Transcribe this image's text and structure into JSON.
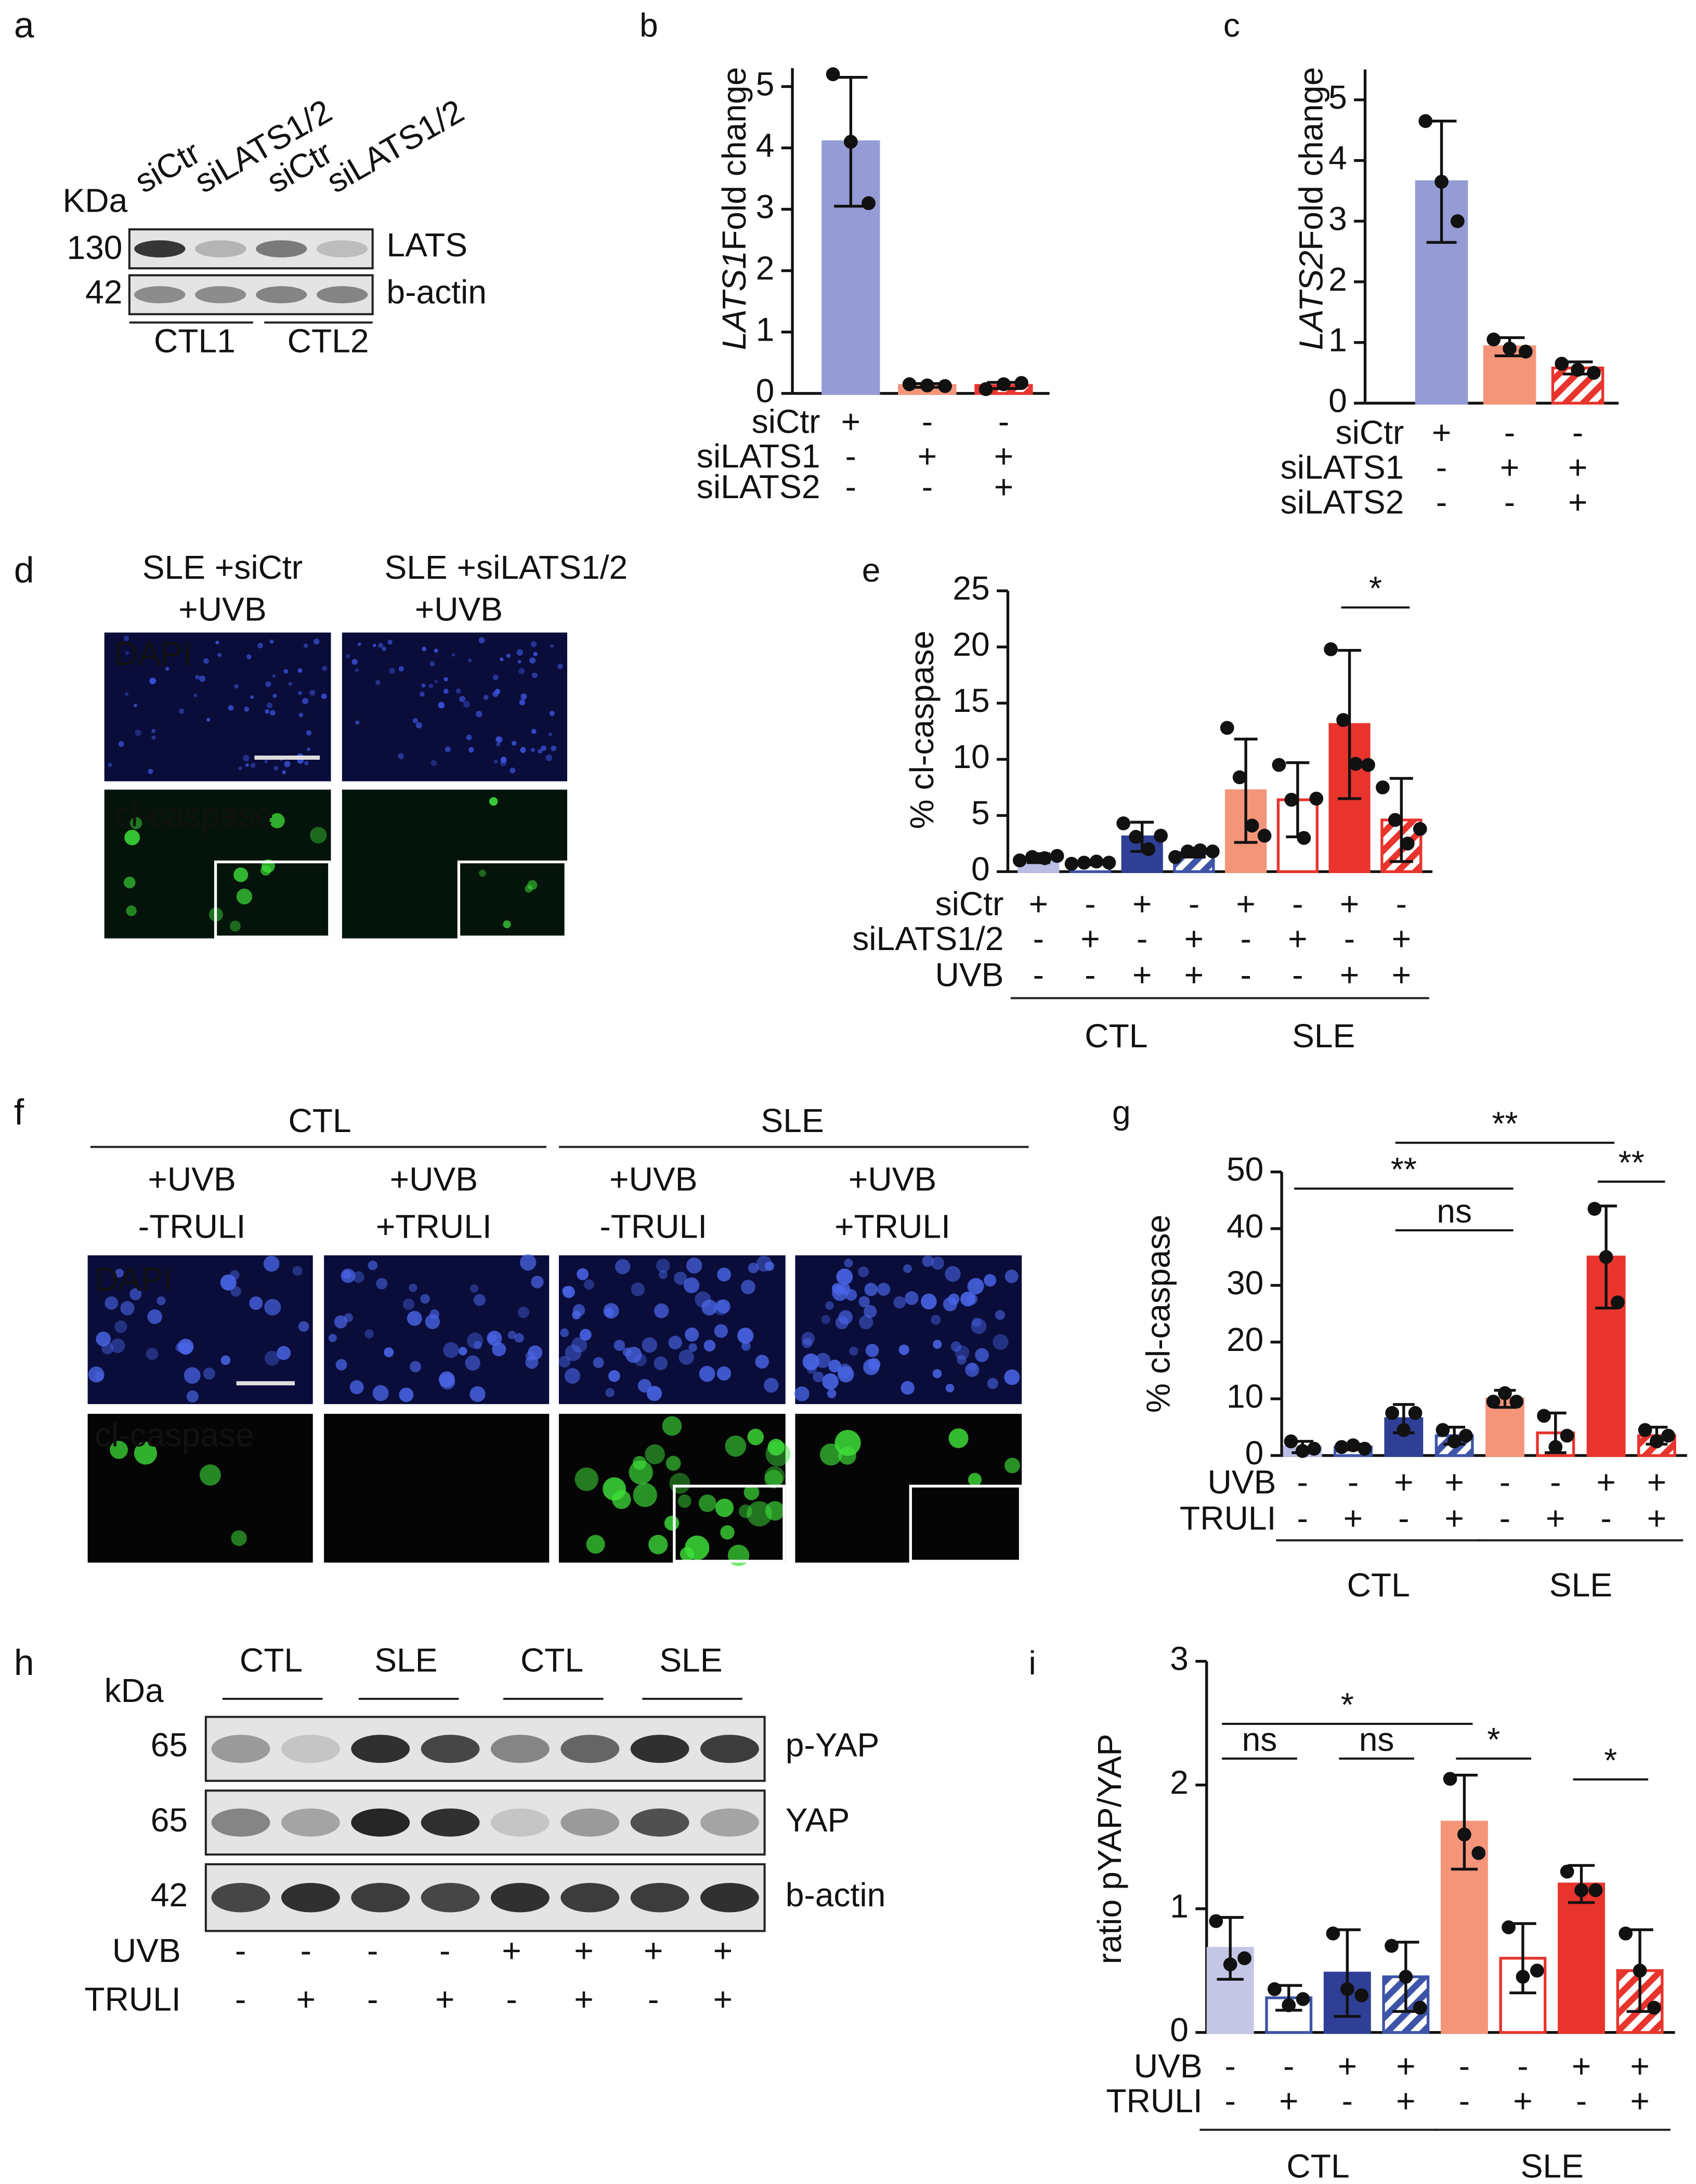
{
  "figure": {
    "a": {
      "label": "a",
      "unit": "KDa",
      "lanes": [
        "siCtr",
        "siLATS1/2",
        "siCtr",
        "siLATS1/2"
      ],
      "rows": [
        {
          "kda": "130",
          "protein": "LATS"
        },
        {
          "kda": "42",
          "protein": "b-actin"
        }
      ],
      "groups": [
        "CTL1",
        "CTL2"
      ]
    },
    "d": {
      "label": "d",
      "columns": [
        [
          "SLE +siCtr",
          "+UVB"
        ],
        [
          "SLE +siLATS1/2",
          "+UVB"
        ]
      ],
      "stains": [
        "DAPI",
        "cl-caspase"
      ]
    },
    "f": {
      "label": "f",
      "groups": [
        "CTL",
        "SLE"
      ],
      "columns": [
        [
          "+UVB",
          "-TRULI"
        ],
        [
          "+UVB",
          "+TRULI"
        ],
        [
          "+UVB",
          "-TRULI"
        ],
        [
          "+UVB",
          "+TRULI"
        ]
      ],
      "stains": [
        "DAPI",
        "cl-caspase"
      ]
    },
    "h": {
      "label": "h",
      "unit": "kDa",
      "groups": [
        "CTL",
        "SLE",
        "CTL",
        "SLE"
      ],
      "rows": [
        {
          "kda": "65",
          "protein": "p-YAP"
        },
        {
          "kda": "65",
          "protein": "YAP"
        },
        {
          "kda": "42",
          "protein": "b-actin"
        }
      ],
      "conditions": [
        {
          "name": "UVB",
          "signs": [
            "-",
            "-",
            "-",
            "-",
            "+",
            "+",
            "+",
            "+"
          ]
        },
        {
          "name": "TRULI",
          "signs": [
            "-",
            "+",
            "-",
            "+",
            "-",
            "+",
            "-",
            "+"
          ]
        }
      ]
    }
  },
  "chart_data": [
    {
      "type": "bar",
      "label": "b",
      "ylabel_gene": "LATS1",
      "ylabel": "Fold change",
      "ylim": [
        0,
        5.3
      ],
      "yticks": [
        0,
        1,
        2,
        3,
        4,
        5
      ],
      "values": [
        4.1,
        0.13,
        0.13
      ],
      "errors": [
        1.05,
        0.03,
        0.05
      ],
      "points": [
        [
          5.2,
          4.1,
          3.1
        ],
        [
          0.15,
          0.13,
          0.12
        ],
        [
          0.07,
          0.15,
          0.17
        ]
      ],
      "colors": [
        "#959bd4",
        "#f4957a",
        "#e8342d"
      ],
      "styles": [
        "solid",
        "solid",
        "hatch"
      ],
      "conditions": [
        {
          "name": "siCtr",
          "signs": [
            "+",
            "-",
            "-"
          ]
        },
        {
          "name": "siLATS1",
          "signs": [
            "-",
            "+",
            "+"
          ]
        },
        {
          "name": "siLATS2",
          "signs": [
            "-",
            "-",
            "+"
          ]
        }
      ]
    },
    {
      "type": "bar",
      "label": "c",
      "ylabel_gene": "LATS2",
      "ylabel": "Fold change",
      "ylim": [
        0,
        5.5
      ],
      "yticks": [
        0,
        1,
        2,
        3,
        4,
        5
      ],
      "values": [
        3.65,
        0.93,
        0.58
      ],
      "errors": [
        1.0,
        0.15,
        0.1
      ],
      "points": [
        [
          4.65,
          3.65,
          3.0
        ],
        [
          1.05,
          0.9,
          0.85
        ],
        [
          0.65,
          0.55,
          0.5
        ]
      ],
      "colors": [
        "#959bd4",
        "#f4957a",
        "#e8342d"
      ],
      "styles": [
        "solid",
        "solid",
        "hatch"
      ],
      "conditions": [
        {
          "name": "siCtr",
          "signs": [
            "+",
            "-",
            "-"
          ]
        },
        {
          "name": "siLATS1",
          "signs": [
            "-",
            "+",
            "+"
          ]
        },
        {
          "name": "siLATS2",
          "signs": [
            "-",
            "-",
            "+"
          ]
        }
      ]
    },
    {
      "type": "bar",
      "label": "e",
      "ylabel": "% cl-caspase",
      "ylim": [
        0,
        25
      ],
      "yticks": [
        0,
        5,
        10,
        15,
        20,
        25
      ],
      "values": [
        1.2,
        0.8,
        3.1,
        1.7,
        7.2,
        6.4,
        13.1,
        4.6
      ],
      "errors": [
        0.4,
        0.2,
        1.3,
        0.4,
        4.6,
        3.3,
        6.6,
        3.7
      ],
      "points": [
        [
          1.0,
          1.3,
          1.2,
          1.4
        ],
        [
          0.7,
          0.8,
          0.9,
          0.8
        ],
        [
          4.3,
          3.1,
          2.0,
          3.2
        ],
        [
          1.3,
          1.8,
          1.9,
          1.8
        ],
        [
          12.8,
          8.4,
          4.1,
          3.2
        ],
        [
          9.5,
          6.4,
          3.0,
          6.5
        ],
        [
          19.8,
          13.5,
          9.6,
          9.5
        ],
        [
          7.5,
          4.6,
          2.5,
          3.8
        ]
      ],
      "colors": [
        "#b9bde4",
        "#3d54a8",
        "#2e3f95",
        "#3d54a8",
        "#f4957a",
        "#e8342d",
        "#e8342d",
        "#e8342d"
      ],
      "styles": [
        "solid",
        "open",
        "solid",
        "hatch",
        "solid",
        "open",
        "solid",
        "hatch"
      ],
      "conditions": [
        {
          "name": "siCtr",
          "signs": [
            "+",
            "-",
            "+",
            "-",
            "+",
            "-",
            "+",
            "-"
          ]
        },
        {
          "name": "siLATS1/2",
          "signs": [
            "-",
            "+",
            "-",
            "+",
            "-",
            "+",
            "-",
            "+"
          ]
        },
        {
          "name": "UVB",
          "signs": [
            "-",
            "-",
            "+",
            "+",
            "-",
            "-",
            "+",
            "+"
          ]
        }
      ],
      "groups": [
        "CTL",
        "SLE"
      ],
      "significance": [
        {
          "label": "*",
          "from": 6,
          "to": 7
        }
      ]
    },
    {
      "type": "bar",
      "label": "g",
      "ylabel": "% cl-caspase",
      "ylim": [
        0,
        50
      ],
      "yticks": [
        0,
        10,
        20,
        30,
        40,
        50
      ],
      "values": [
        1.5,
        1.5,
        6.5,
        3.5,
        10,
        4,
        35,
        3.5
      ],
      "errors": [
        1,
        0.5,
        2.5,
        1.5,
        1.5,
        3.5,
        9,
        1.5
      ],
      "points": [
        [
          2.5,
          0.8,
          1.2
        ],
        [
          1.5,
          1.8,
          1.2
        ],
        [
          7.5,
          4.5,
          7.5
        ],
        [
          4.5,
          2.5,
          3.5
        ],
        [
          9.5,
          11,
          9.5
        ],
        [
          7,
          1.5,
          3.5
        ],
        [
          43.5,
          35,
          27
        ],
        [
          4.5,
          2.5,
          3.5
        ]
      ],
      "colors": [
        "#b9bde4",
        "#3d54a8",
        "#2e3f95",
        "#3d54a8",
        "#f4957a",
        "#e8342d",
        "#e8342d",
        "#e8342d"
      ],
      "styles": [
        "solid",
        "open",
        "solid",
        "hatch",
        "solid",
        "open",
        "solid",
        "hatch"
      ],
      "conditions": [
        {
          "name": "UVB",
          "signs": [
            "-",
            "-",
            "+",
            "+",
            "-",
            "-",
            "+",
            "+"
          ]
        },
        {
          "name": "TRULI",
          "signs": [
            "-",
            "+",
            "-",
            "+",
            "-",
            "+",
            "-",
            "+"
          ]
        }
      ],
      "groups": [
        "CTL",
        "SLE"
      ],
      "significance": [
        {
          "label": "**",
          "from": 0,
          "to": 4
        },
        {
          "label": "ns",
          "from": 2,
          "to": 4
        },
        {
          "label": "**",
          "from": 2,
          "to": 6
        },
        {
          "label": "**",
          "from": 6,
          "to": 7
        }
      ]
    },
    {
      "type": "bar",
      "label": "i",
      "ylabel": "ratio pYAP/YAP",
      "ylim": [
        0,
        3
      ],
      "yticks": [
        0,
        1,
        2,
        3
      ],
      "values": [
        0.68,
        0.28,
        0.48,
        0.45,
        1.7,
        0.6,
        1.2,
        0.5
      ],
      "errors": [
        0.25,
        0.1,
        0.35,
        0.28,
        0.38,
        0.28,
        0.15,
        0.33
      ],
      "points": [
        [
          0.9,
          0.55,
          0.6
        ],
        [
          0.35,
          0.22,
          0.27
        ],
        [
          0.8,
          0.35,
          0.3
        ],
        [
          0.7,
          0.45,
          0.2
        ],
        [
          2.05,
          1.6,
          1.45
        ],
        [
          0.85,
          0.45,
          0.5
        ],
        [
          1.3,
          1.15,
          1.15
        ],
        [
          0.8,
          0.5,
          0.2
        ]
      ],
      "colors": [
        "#c5c6e6",
        "#3d54a8",
        "#2e3f95",
        "#3d54a8",
        "#f4957a",
        "#e8342d",
        "#e8342d",
        "#e8342d"
      ],
      "styles": [
        "solid",
        "open",
        "solid",
        "hatch",
        "solid",
        "open",
        "solid",
        "hatch"
      ],
      "conditions": [
        {
          "name": "UVB",
          "signs": [
            "-",
            "-",
            "+",
            "+",
            "-",
            "-",
            "+",
            "+"
          ]
        },
        {
          "name": "TRULI",
          "signs": [
            "-",
            "+",
            "-",
            "+",
            "-",
            "+",
            "-",
            "+"
          ]
        }
      ],
      "groups": [
        "CTL",
        "SLE"
      ],
      "significance": [
        {
          "label": "*",
          "from": 0,
          "to": 4
        },
        {
          "label": "ns",
          "from": 0,
          "to": 1
        },
        {
          "label": "ns",
          "from": 2,
          "to": 3
        },
        {
          "label": "*",
          "from": 4,
          "to": 5
        },
        {
          "label": "*",
          "from": 6,
          "to": 7
        }
      ]
    }
  ]
}
